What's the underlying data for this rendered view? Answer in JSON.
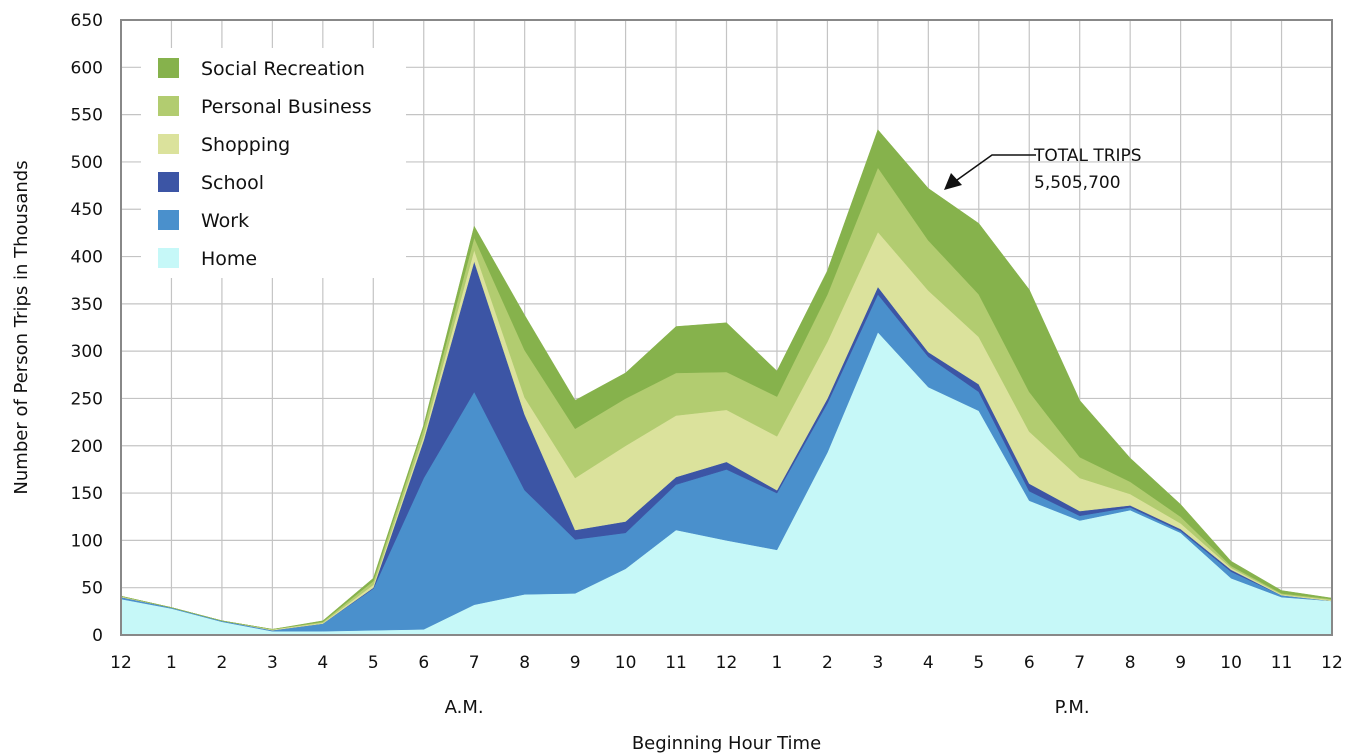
{
  "chart_data": {
    "type": "area",
    "stacked": true,
    "xlabel": "Beginning Hour Time",
    "ylabel": "Number of Person Trips in Thousands",
    "ylim": [
      0,
      650
    ],
    "yticks": [
      0,
      50,
      100,
      150,
      200,
      250,
      300,
      350,
      400,
      450,
      500,
      550,
      600,
      650
    ],
    "categories": [
      "12",
      "1",
      "2",
      "3",
      "4",
      "5",
      "6",
      "7",
      "8",
      "9",
      "10",
      "11",
      "12",
      "1",
      "2",
      "3",
      "4",
      "5",
      "6",
      "7",
      "8",
      "9",
      "10",
      "11",
      "12"
    ],
    "period_labels": [
      "A.M.",
      "P.M."
    ],
    "grid": true,
    "legend_position": "top-left",
    "series": [
      {
        "name": "Home",
        "color": "#c6f8f8",
        "values": [
          38,
          28,
          14,
          4,
          4,
          5,
          6,
          32,
          43,
          44,
          70,
          111,
          100,
          90,
          193,
          320,
          262,
          237,
          142,
          121,
          132,
          108,
          60,
          40,
          36
        ]
      },
      {
        "name": "Work",
        "color": "#4a90cc",
        "values": [
          2,
          1,
          1,
          1,
          8,
          44,
          160,
          225,
          110,
          57,
          38,
          48,
          75,
          60,
          52,
          40,
          32,
          20,
          10,
          5,
          3,
          2,
          7,
          2,
          0
        ]
      },
      {
        "name": "School",
        "color": "#3c55a5",
        "values": [
          0,
          0,
          0,
          0,
          0,
          1,
          40,
          138,
          80,
          10,
          12,
          8,
          8,
          3,
          5,
          8,
          5,
          8,
          8,
          5,
          2,
          2,
          2,
          0,
          0
        ]
      },
      {
        "name": "Shopping",
        "color": "#dbe29c",
        "values": [
          1,
          0,
          0,
          1,
          1,
          3,
          5,
          12,
          18,
          55,
          80,
          65,
          55,
          57,
          60,
          58,
          65,
          50,
          55,
          35,
          12,
          6,
          2,
          1,
          1
        ]
      },
      {
        "name": "Personal Business",
        "color": "#b2cc70",
        "values": [
          0,
          0,
          0,
          0,
          1,
          4,
          8,
          13,
          50,
          52,
          50,
          45,
          40,
          42,
          50,
          68,
          53,
          45,
          42,
          22,
          13,
          7,
          2,
          1,
          1
        ]
      },
      {
        "name": "Social Recreation",
        "color": "#86b24c",
        "values": [
          0,
          0,
          0,
          0,
          1,
          3,
          3,
          12,
          37,
          30,
          27,
          49,
          52,
          27,
          25,
          40,
          55,
          75,
          108,
          60,
          25,
          13,
          5,
          3,
          1
        ]
      }
    ],
    "annotation": {
      "line1": "TOTAL TRIPS",
      "line2": "5,505,700"
    }
  }
}
